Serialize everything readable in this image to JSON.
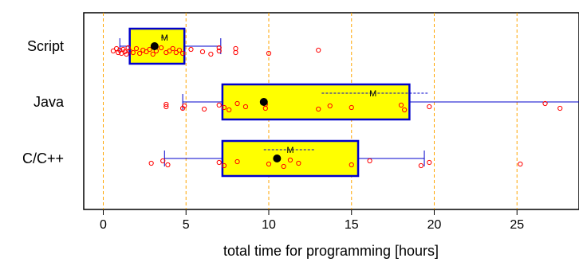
{
  "chart_data": {
    "type": "boxplot",
    "xlabel": "total time for programming [hours]",
    "ylabel": "",
    "xlim": [
      -1,
      29
    ],
    "xticks": [
      0,
      5,
      10,
      15,
      20,
      25
    ],
    "grid": "vertical dashed orange at x ticks",
    "mean_marker_label": "M",
    "colors": {
      "box_fill": "#ffff00",
      "box_border": "#0000cc",
      "whisker": "#0000cc",
      "points": "#ff0000",
      "median_dot": "#000000",
      "grid": "#ffa500",
      "mean_line": "#0000cc"
    },
    "groups": [
      {
        "name": "Script",
        "q1": 1.6,
        "median": 3.1,
        "q3": 4.9,
        "whisker_low": 1.0,
        "whisker_high": 7.1,
        "mean": 3.7,
        "mean_se_low": 3.5,
        "mean_se_high": 3.9,
        "points": [
          0.6,
          0.8,
          0.9,
          1.0,
          1.1,
          1.2,
          1.3,
          1.4,
          1.5,
          1.6,
          1.8,
          2.0,
          2.2,
          2.4,
          2.6,
          2.8,
          3.0,
          3.2,
          3.5,
          3.8,
          4.0,
          4.2,
          4.4,
          4.6,
          4.8,
          5.3,
          6.0,
          6.5,
          7.0,
          7.0,
          8.0,
          8.0,
          10.0,
          13.0
        ]
      },
      {
        "name": "Java",
        "q1": 7.2,
        "median": 9.7,
        "q3": 18.5,
        "whisker_low": 4.8,
        "whisker_high": 29.0,
        "mean": 16.3,
        "mean_se_low": 13.2,
        "mean_se_high": 19.6,
        "points": [
          3.8,
          3.8,
          4.8,
          4.9,
          6.1,
          7.0,
          7.3,
          7.6,
          8.1,
          8.6,
          9.8,
          9.8,
          13.0,
          13.7,
          15.0,
          18.0,
          18.2,
          19.7,
          26.7,
          27.6
        ]
      },
      {
        "name": "C/C++",
        "q1": 7.2,
        "median": 10.5,
        "q3": 15.4,
        "whisker_low": 3.7,
        "whisker_high": 19.4,
        "mean": 11.3,
        "mean_se_low": 9.7,
        "mean_se_high": 12.8,
        "points": [
          2.9,
          3.6,
          3.9,
          7.0,
          7.3,
          8.1,
          10.0,
          10.9,
          11.3,
          11.8,
          15.0,
          16.1,
          19.2,
          19.7,
          25.2
        ]
      }
    ]
  }
}
